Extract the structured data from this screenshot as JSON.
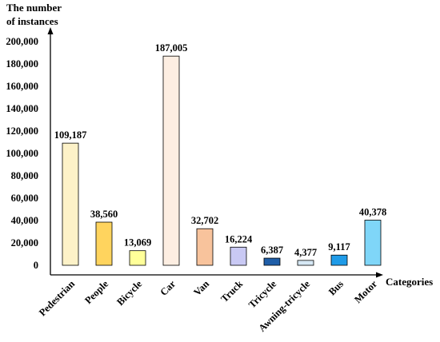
{
  "chart_data": {
    "type": "bar",
    "ylabel_lines": [
      "The number",
      "of instances"
    ],
    "xlabel": "Categories",
    "ylim": [
      0,
      200000
    ],
    "yticks": [
      {
        "value": 0,
        "label": "0"
      },
      {
        "value": 20000,
        "label": "20,000"
      },
      {
        "value": 40000,
        "label": "40,000"
      },
      {
        "value": 60000,
        "label": "60,000"
      },
      {
        "value": 80000,
        "label": "80,000"
      },
      {
        "value": 100000,
        "label": "100,000"
      },
      {
        "value": 120000,
        "label": "120,000"
      },
      {
        "value": 140000,
        "label": "140,000"
      },
      {
        "value": 160000,
        "label": "160,000"
      },
      {
        "value": 180000,
        "label": "180,000"
      },
      {
        "value": 200000,
        "label": "200,000"
      }
    ],
    "categories": [
      "Pedestrian",
      "People",
      "Bicycle",
      "Car",
      "Van",
      "Truck",
      "Tricycle",
      "Awning-tricycle",
      "Bus",
      "Motor"
    ],
    "values": [
      109187,
      38560,
      13069,
      187005,
      32702,
      16224,
      6387,
      4377,
      9117,
      40378
    ],
    "value_labels": [
      "109,187",
      "38,560",
      "13,069",
      "187,005",
      "32,702",
      "16,224",
      "6,387",
      "4,377",
      "9,117",
      "40,378"
    ],
    "colors": [
      "#fdf2c8",
      "#ffd45e",
      "#ffff99",
      "#fdeee2",
      "#f8c39c",
      "#c9c9f4",
      "#1f5ea8",
      "#d6e8f4",
      "#1f9be8",
      "#7fd6f8"
    ],
    "grid": false,
    "legend": "none"
  }
}
